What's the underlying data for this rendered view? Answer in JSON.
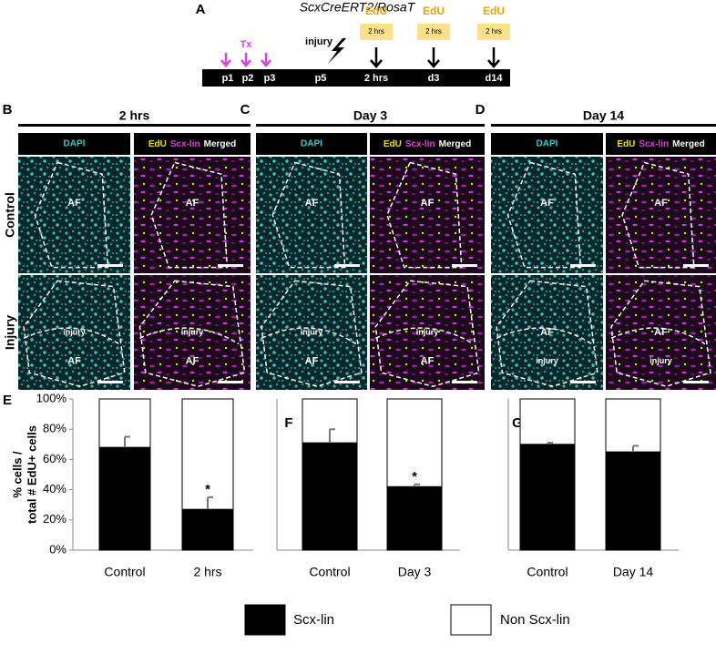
{
  "panel_a": {
    "label": "A",
    "title": "ScxCreERT2/RosaT",
    "tx": "Tx",
    "injury": "injury",
    "edu": [
      "EdU",
      "EdU",
      "EdU"
    ],
    "edu_duration": [
      "2 hrs",
      "2 hrs",
      "2 hrs"
    ],
    "timeline": [
      "p1",
      "p2",
      "p3",
      "p5",
      "2 hrs",
      "d3",
      "d14"
    ]
  },
  "row_labels": [
    "Control",
    "Injury"
  ],
  "image_panels": [
    {
      "label": "B",
      "title": "2 hrs",
      "dapi": "DAPI",
      "edu": "EdU",
      "scx": "Scx-lin",
      "merged": "Merged",
      "region_labels": [
        [
          "AF"
        ],
        [
          "AF"
        ],
        [
          "injury",
          "AF"
        ],
        [
          "injury",
          "AF"
        ]
      ]
    },
    {
      "label": "C",
      "title": "Day 3",
      "dapi": "DAPI",
      "edu": "EdU",
      "scx": "Scx-lin",
      "merged": "Merged",
      "region_labels": [
        [
          "AF"
        ],
        [
          "AF"
        ],
        [
          "injury",
          "AF"
        ],
        [
          "injury",
          "AF"
        ]
      ]
    },
    {
      "label": "D",
      "title": "Day 14",
      "dapi": "DAPI",
      "edu": "EdU",
      "scx": "Scx-lin",
      "merged": "Merged",
      "region_labels": [
        [
          "AF"
        ],
        [
          "AF"
        ],
        [
          "AF",
          "injury"
        ],
        [
          "AF",
          "injury"
        ]
      ]
    }
  ],
  "chart_data": [
    {
      "type": "bar",
      "label": "E",
      "stacked": true,
      "ylabel": [
        "% cells /",
        "total # EdU+ cells"
      ],
      "categories": [
        "Control",
        "2 hrs"
      ],
      "series": [
        {
          "name": "Scx-lin",
          "color": "#000000",
          "values": [
            68,
            27
          ],
          "error": [
            7,
            8
          ]
        },
        {
          "name": "Non Scx-lin",
          "color": "#ffffff",
          "values": [
            32,
            73
          ]
        }
      ],
      "significance": [
        null,
        "*"
      ],
      "ylim": [
        0,
        100
      ],
      "yticks": [
        {
          "value": 0,
          "label": "0%"
        },
        {
          "value": 20,
          "label": "20%"
        },
        {
          "value": 40,
          "label": "40%"
        },
        {
          "value": 60,
          "label": "60%"
        },
        {
          "value": 80,
          "label": "80%"
        },
        {
          "value": 100,
          "label": "100%"
        }
      ]
    },
    {
      "type": "bar",
      "label": "F",
      "stacked": true,
      "categories": [
        "Control",
        "Day 3"
      ],
      "series": [
        {
          "color": "#000000",
          "values": [
            71,
            42
          ],
          "error": [
            9,
            1.5
          ]
        },
        {
          "color": "#ffffff",
          "values": [
            29,
            58
          ]
        }
      ],
      "significance": [
        null,
        "*"
      ],
      "ylim": [
        0,
        100
      ]
    },
    {
      "type": "bar",
      "label": "G",
      "stacked": true,
      "categories": [
        "Control",
        "Day 14"
      ],
      "series": [
        {
          "color": "#000000",
          "values": [
            70,
            65
          ],
          "error": [
            1,
            4
          ]
        },
        {
          "color": "#ffffff",
          "values": [
            30,
            35
          ]
        }
      ],
      "significance": [
        null,
        null
      ],
      "ylim": [
        0,
        100
      ]
    }
  ]
}
